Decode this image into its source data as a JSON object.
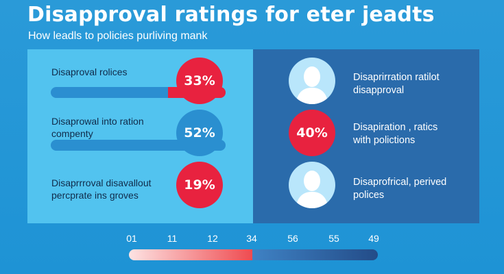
{
  "title": "Disapproval ratings for  eter jeadts",
  "subtitle": "How leadls to policies purliving mank",
  "colors": {
    "red": "#e8223f",
    "blue": "#2a8fd0",
    "dark_blue": "#2b5f9a",
    "panel_light": "#52c3ef",
    "panel_dark": "#2a6bab"
  },
  "chart_data": {
    "type": "bar",
    "title": "Disapproval ratings for  eter jeadts",
    "subtitle": "How leadls to policies purliving mank",
    "categories": [
      "Disaproval rolices",
      "Disaprowal into ration compenty",
      "Disaprrroval disavallout percprate ins groves"
    ],
    "values": [
      33,
      52,
      19
    ],
    "value_labels": [
      "33%",
      "52%",
      "19%"
    ],
    "unit": "%",
    "ylim": [
      0,
      100
    ],
    "side_items": [
      {
        "label": "Disaprirration ratilot disapproval",
        "marker": "avatar"
      },
      {
        "label": "Disapiration , ratics with polictions",
        "value": 40,
        "value_label": "40%"
      },
      {
        "label": "Disaprofrical, perived polices",
        "marker": "avatar"
      }
    ],
    "scale": {
      "ticks": [
        "01",
        "11",
        "12",
        "34",
        "56",
        "55",
        "49"
      ],
      "highlight_until": "34"
    }
  },
  "rows": [
    {
      "label_lines": [
        "Disaproval rolices"
      ],
      "badge": "33%"
    },
    {
      "label_lines": [
        "Disaprowal into ration",
        "compenty"
      ],
      "badge": "52%"
    },
    {
      "label_lines": [
        "Disaprrroval disavallout",
        "percprate ins groves"
      ],
      "badge": "19%"
    }
  ],
  "right_rows": [
    {
      "label_lines": [
        "Disaprirration ratilot",
        "disapproval"
      ]
    },
    {
      "label_lines": [
        "Disapiration , ratics",
        "with polictions"
      ],
      "badge": "40%"
    },
    {
      "label_lines": [
        "Disaprofrical, perived",
        "polices"
      ]
    }
  ]
}
